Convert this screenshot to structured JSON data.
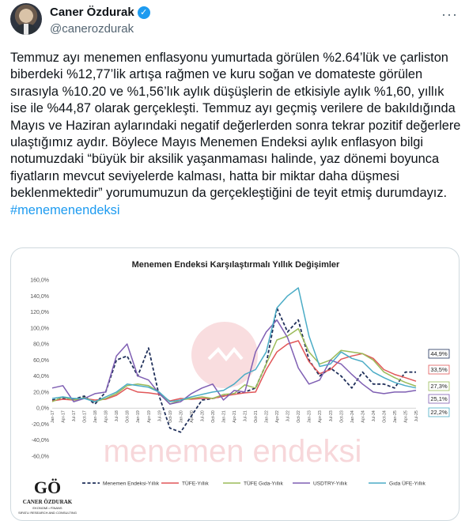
{
  "author": {
    "display_name": "Caner Özdurak",
    "verified_icon": "verified-badge-icon",
    "handle": "@canerozdurak",
    "more_icon": "more-options-icon"
  },
  "tweet": {
    "text": "Temmuz ayı menemen enflasyonu yumurtada görülen %2.64’lük ve çarliston biberdeki %12,77’lik artışa rağmen ve kuru soğan ve domateste görülen sırasıyla %10.20 ve %1,56’lık aylık düşüşlerin de etkisiyle aylık %1,60, yıllık ise ile %44,87 olarak gerçekleşti. Temmuz ayı geçmiş verilere de bakıldığında Mayıs ve Haziran aylarındaki negatif değerlerden sonra tekrar pozitif değerlere ulaştığımız aydır. Böylece Mayıs Menemen Endeksi aylık enflasyon bilgi notumuzdaki “büyük bir aksilik yaşanmaması halinde, yaz dönemi boyunca fiyatların mevcut seviyelerde kalması, hatta bir miktar daha düşmesi beklenmektedir” yorumumuzun da gerçekleştiğini de teyit etmiş durumdayız. ",
    "hashtag": "#menemenendeksi"
  },
  "chart_data": {
    "type": "line",
    "title": "Menemen Endeksi Karşılaştırmalı Yıllık Değişimler",
    "ylim": [
      -60,
      160
    ],
    "yticks": [
      "160,0%",
      "140,0%",
      "120,0%",
      "100,0%",
      "80,0%",
      "60,0%",
      "40,0%",
      "20,0%",
      "0,0%",
      "-20,0%",
      "-40,0%",
      "-60,0%"
    ],
    "x": [
      "Jan-17",
      "Apr-17",
      "Jul-17",
      "Oct-17",
      "Jan-18",
      "Apr-18",
      "Jul-18",
      "Oct-18",
      "Jan-19",
      "Apr-19",
      "Jul-19",
      "Oct-19",
      "Jan-20",
      "Apr-20",
      "Jul-20",
      "Oct-20",
      "Jan-21",
      "Apr-21",
      "Jul-21",
      "Oct-21",
      "Jan-22",
      "Apr-22",
      "Jul-22",
      "Oct-22",
      "Jan-23",
      "Apr-23",
      "Jul-23",
      "Oct-23",
      "Jan-24",
      "Apr-24",
      "Jul-24",
      "Oct-24",
      "Jan-25",
      "Apr-25",
      "Jul-25"
    ],
    "series": [
      {
        "name": "Menemen Endeksi-Yıllık",
        "color": "#1f2f5a",
        "dash": true,
        "values": [
          10,
          12,
          11,
          15,
          5,
          20,
          60,
          65,
          40,
          75,
          15,
          -25,
          -30,
          -10,
          10,
          12,
          15,
          18,
          20,
          25,
          55,
          125,
          95,
          110,
          60,
          40,
          50,
          40,
          25,
          45,
          30,
          30,
          25,
          45,
          44.9
        ]
      },
      {
        "name": "TÜFE-Yıllık",
        "color": "#e15759",
        "dash": false,
        "values": [
          9,
          11,
          10,
          12,
          10,
          11,
          16,
          25,
          20,
          19,
          17,
          9,
          12,
          11,
          12,
          12,
          15,
          17,
          19,
          20,
          48,
          70,
          80,
          84,
          58,
          43,
          48,
          61,
          65,
          68,
          62,
          48,
          42,
          38,
          33.5
        ]
      },
      {
        "name": "TÜFE Gıda-Yıllık",
        "color": "#9bbb59",
        "dash": false,
        "values": [
          8,
          14,
          10,
          13,
          8,
          12,
          18,
          28,
          30,
          28,
          20,
          5,
          10,
          12,
          14,
          12,
          17,
          18,
          29,
          25,
          55,
          85,
          90,
          99,
          70,
          55,
          60,
          72,
          70,
          68,
          60,
          45,
          38,
          32,
          27.3
        ]
      },
      {
        "name": "USDTRY-Yıllık",
        "color": "#7f5fb3",
        "dash": false,
        "values": [
          25,
          28,
          8,
          12,
          18,
          20,
          65,
          80,
          40,
          35,
          18,
          5,
          8,
          18,
          25,
          30,
          10,
          22,
          20,
          70,
          95,
          110,
          88,
          50,
          30,
          35,
          60,
          55,
          42,
          30,
          20,
          18,
          20,
          20,
          22.2
        ]
      },
      {
        "name": "Gıda ÜFE-Yıllık",
        "color": "#4bacc6",
        "dash": false,
        "values": [
          12,
          14,
          12,
          12,
          8,
          14,
          20,
          30,
          28,
          26,
          20,
          8,
          10,
          14,
          17,
          20,
          22,
          30,
          42,
          48,
          70,
          125,
          140,
          150,
          90,
          52,
          55,
          70,
          62,
          58,
          45,
          38,
          32,
          28,
          25.1
        ]
      }
    ],
    "end_labels": [
      "44,9%",
      "33,5%",
      "27,3%",
      "25,1%",
      "22,2%"
    ],
    "legend_position": "bottom",
    "grid": false,
    "watermark": "menemen endeksi",
    "logo": {
      "name": "CANER ÖZDURAK",
      "sub": "EKONOMİ • FİNANS",
      "sub2": "SIFATLI RESEARCH AND CONSULTING"
    }
  }
}
